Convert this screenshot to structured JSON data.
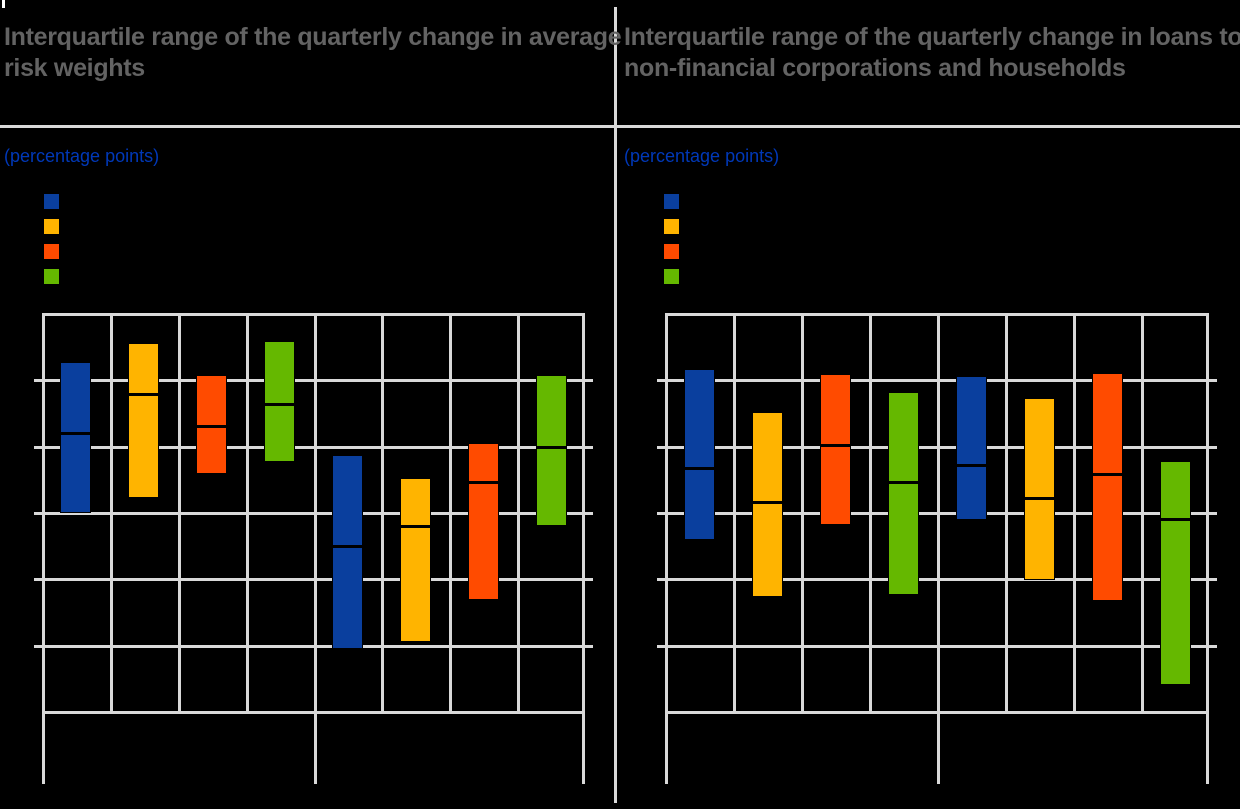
{
  "page": {
    "background": "#000000",
    "note": "static chart image; x-axis and y-axis tick labels and legend labels are not visible (rendered black on black)"
  },
  "colors": {
    "blue": "#0a3f9e",
    "yellow": "#ffb400",
    "orange": "#ff4b00",
    "green": "#65b800",
    "gridline": "#d9d9d9",
    "title_text": "#636363",
    "unit_text": "#0038b8"
  },
  "panels": [
    {
      "title": "Interquartile range of the quarterly change in average risk weights",
      "unit_label": "(percentage points)",
      "legend": [
        {
          "label": "",
          "color": "#0a3f9e"
        },
        {
          "label": "",
          "color": "#ffb400"
        },
        {
          "label": "",
          "color": "#ff4b00"
        },
        {
          "label": "",
          "color": "#65b800"
        }
      ]
    },
    {
      "title": "Interquartile range of the quarterly change in loans to non-financial corporations and households",
      "unit_label": "(percentage points)",
      "legend": [
        {
          "label": "",
          "color": "#0a3f9e"
        },
        {
          "label": "",
          "color": "#ffb400"
        },
        {
          "label": "",
          "color": "#ff4b00"
        },
        {
          "label": "",
          "color": "#65b800"
        }
      ]
    }
  ],
  "chart_data": [
    {
      "type": "bar",
      "subtype": "floating-interquartile-range-bars-with-median",
      "panel": "left",
      "title": "Interquartile range of the quarterly change in average risk weights",
      "ylabel": "(percentage points)",
      "xlabel": "",
      "categories": [
        "",
        "",
        "",
        "",
        "",
        "",
        "",
        ""
      ],
      "axis_note": "numeric axis labels not visible; values estimated in gridline units, bottom gridline = 0, top gridline = 6",
      "ylim": [
        0,
        6
      ],
      "grid": true,
      "x_group_separators": [
        0,
        4,
        8
      ],
      "bars": [
        {
          "pos": 1,
          "color": "blue",
          "q1": 3.0,
          "median": 4.2,
          "q3": 5.27
        },
        {
          "pos": 2,
          "color": "yellow",
          "q1": 3.23,
          "median": 4.79,
          "q3": 5.57
        },
        {
          "pos": 3,
          "color": "orange",
          "q1": 3.59,
          "median": 4.31,
          "q3": 5.08
        },
        {
          "pos": 4,
          "color": "green",
          "q1": 3.77,
          "median": 4.64,
          "q3": 5.6
        },
        {
          "pos": 5,
          "color": "blue",
          "q1": 0.95,
          "median": 2.5,
          "q3": 3.88
        },
        {
          "pos": 6,
          "color": "yellow",
          "q1": 1.06,
          "median": 2.81,
          "q3": 3.53
        },
        {
          "pos": 7,
          "color": "orange",
          "q1": 1.7,
          "median": 3.47,
          "q3": 4.06
        },
        {
          "pos": 8,
          "color": "green",
          "q1": 2.8,
          "median": 4.0,
          "q3": 5.08
        }
      ]
    },
    {
      "type": "bar",
      "subtype": "floating-interquartile-range-bars-with-median",
      "panel": "right",
      "title": "Interquartile range of the quarterly change in loans to non-financial corporations and households",
      "ylabel": "(percentage points)",
      "xlabel": "",
      "categories": [
        "",
        "",
        "",
        "",
        "",
        "",
        "",
        ""
      ],
      "axis_note": "numeric axis labels not visible; values estimated in gridline units, bottom gridline = 0, top gridline = 6",
      "ylim": [
        0,
        6
      ],
      "grid": true,
      "x_group_separators": [
        0,
        4,
        8
      ],
      "bars": [
        {
          "pos": 1,
          "color": "blue",
          "q1": 2.59,
          "median": 3.68,
          "q3": 5.17
        },
        {
          "pos": 2,
          "color": "yellow",
          "q1": 1.74,
          "median": 3.16,
          "q3": 4.53
        },
        {
          "pos": 3,
          "color": "orange",
          "q1": 2.82,
          "median": 4.03,
          "q3": 5.1
        },
        {
          "pos": 4,
          "color": "green",
          "q1": 1.77,
          "median": 3.46,
          "q3": 4.83
        },
        {
          "pos": 5,
          "color": "blue",
          "q1": 2.9,
          "median": 3.73,
          "q3": 5.07
        },
        {
          "pos": 6,
          "color": "yellow",
          "q1": 1.99,
          "median": 3.23,
          "q3": 4.73
        },
        {
          "pos": 7,
          "color": "orange",
          "q1": 1.67,
          "median": 3.59,
          "q3": 5.11
        },
        {
          "pos": 8,
          "color": "green",
          "q1": 0.4,
          "median": 2.91,
          "q3": 3.78
        }
      ]
    }
  ]
}
